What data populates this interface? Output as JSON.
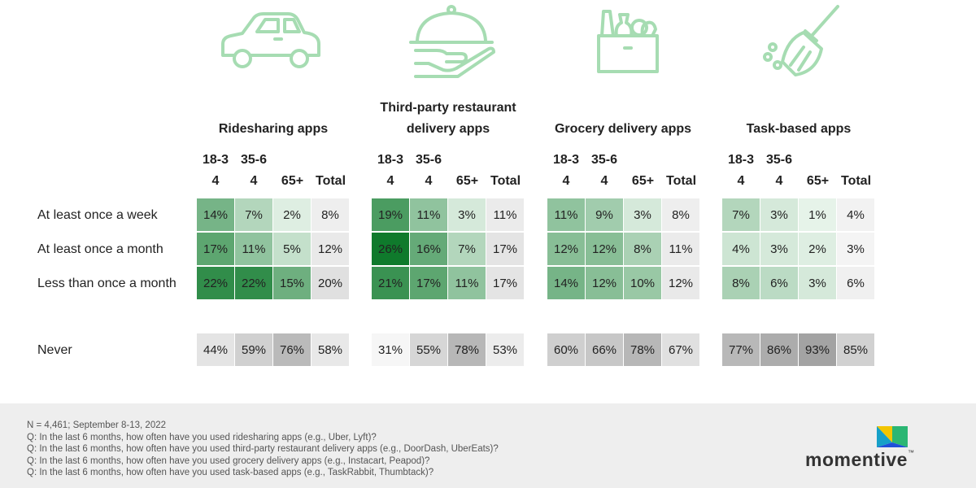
{
  "chart_data": {
    "type": "table",
    "groups": [
      {
        "title": "Ridesharing apps",
        "icon": "car-icon",
        "columns": [
          "18-34",
          "35-64",
          "65+",
          "Total"
        ],
        "rows": [
          {
            "label": "At least once a week",
            "values": [
              14,
              7,
              2,
              8
            ]
          },
          {
            "label": "At least once a month",
            "values": [
              17,
              11,
              5,
              12
            ]
          },
          {
            "label": "Less than once a month",
            "values": [
              22,
              22,
              15,
              20
            ]
          },
          {
            "label": "Never",
            "values": [
              44,
              59,
              76,
              58
            ]
          }
        ]
      },
      {
        "title": "Third-party restaurant delivery apps",
        "icon": "food-cloche-icon",
        "columns": [
          "18-34",
          "35-64",
          "65+",
          "Total"
        ],
        "rows": [
          {
            "label": "At least once a week",
            "values": [
              19,
              11,
              3,
              11
            ]
          },
          {
            "label": "At least once a month",
            "values": [
              26,
              16,
              7,
              17
            ]
          },
          {
            "label": "Less than once a month",
            "values": [
              21,
              17,
              11,
              17
            ]
          },
          {
            "label": "Never",
            "values": [
              31,
              55,
              78,
              53
            ]
          }
        ]
      },
      {
        "title": "Grocery delivery apps",
        "icon": "grocery-bag-icon",
        "columns": [
          "18-34",
          "35-64",
          "65+",
          "Total"
        ],
        "rows": [
          {
            "label": "At least once a week",
            "values": [
              11,
              9,
              3,
              8
            ]
          },
          {
            "label": "At least once a month",
            "values": [
              12,
              12,
              8,
              11
            ]
          },
          {
            "label": "Less than once a month",
            "values": [
              14,
              12,
              10,
              12
            ]
          },
          {
            "label": "Never",
            "values": [
              60,
              66,
              78,
              67
            ]
          }
        ]
      },
      {
        "title": "Task-based apps",
        "icon": "broom-icon",
        "columns": [
          "18-34",
          "35-64",
          "65+",
          "Total"
        ],
        "rows": [
          {
            "label": "At least once a week",
            "values": [
              7,
              3,
              1,
              4
            ]
          },
          {
            "label": "At least once a month",
            "values": [
              4,
              3,
              2,
              3
            ]
          },
          {
            "label": "Less than once a month",
            "values": [
              8,
              6,
              3,
              6
            ]
          },
          {
            "label": "Never",
            "values": [
              77,
              86,
              93,
              85
            ]
          }
        ]
      }
    ],
    "row_labels": [
      "At least once a week",
      "At least once a month",
      "Less than once a month",
      "Never"
    ],
    "value_suffix": "%"
  },
  "footer": {
    "notes": [
      "N = 4,461; September 8-13, 2022",
      "Q: In the last 6 months, how often have you used ridesharing apps (e.g., Uber, Lyft)?",
      "Q: In the last 6 months, how often have you used third-party restaurant delivery apps (e.g., DoorDash, UberEats)?",
      "Q: In the last 6 months, how often have you used grocery delivery apps (e.g., Instacart, Peapod)?",
      "Q: In the last 6 months, how often have you used task-based apps (e.g., TaskRabbit, Thumbtack)?"
    ],
    "logo_text": "momentive",
    "logo_tm": "™"
  },
  "colors": {
    "icon_green": "#a6dcb2",
    "green_scale_light": "#eff8f1",
    "green_scale_dark": "#0f7a2c",
    "grey_scale_light": "#f5f5f5",
    "grey_scale_dark": "#a3a3a3",
    "footer_bg": "#eeeeee",
    "logo_yellow": "#f2c500",
    "logo_blue": "#1f4fd8",
    "logo_green": "#2bb673",
    "logo_teal": "#16a0c8"
  }
}
